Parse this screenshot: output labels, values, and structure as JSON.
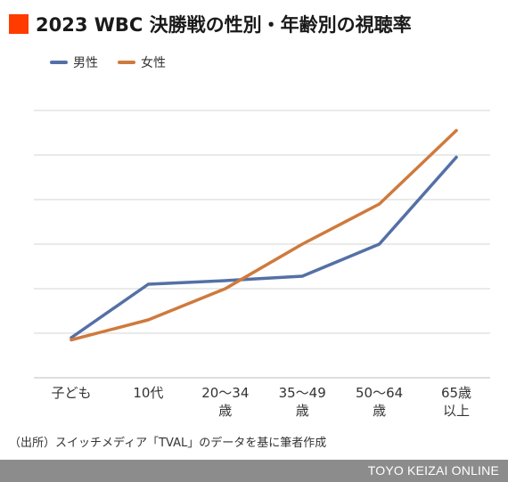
{
  "header": {
    "title": "2023 WBC 決勝戦の性別・年齢別の視聴率",
    "mark_color": "#ff3b00"
  },
  "source_note": "（出所）スイッチメディア「TVAL」のデータを基に筆者作成",
  "footer": {
    "brand": "TOYO KEIZAI ONLINE",
    "bar_color": "#8c8c8c"
  },
  "chart_data": {
    "type": "line",
    "title": "2023 WBC 決勝戦の性別・年齢別の視聴率",
    "categories": [
      "子ども",
      "10代",
      "20〜34歳",
      "35〜49歳",
      "50〜64歳",
      "65歳以上"
    ],
    "category_label_lines": [
      [
        "子ども"
      ],
      [
        "10代"
      ],
      [
        "20〜34",
        "歳"
      ],
      [
        "35〜49",
        "歳"
      ],
      [
        "50〜64",
        "歳"
      ],
      [
        "65歳",
        "以上"
      ]
    ],
    "series": [
      {
        "name": "男性",
        "color": "#5470a6",
        "values": [
          0.9,
          2.1,
          2.18,
          2.28,
          3.0,
          4.95
        ]
      },
      {
        "name": "女性",
        "color": "#cf7a3c",
        "values": [
          0.85,
          1.3,
          2.0,
          3.0,
          3.9,
          5.55
        ]
      }
    ],
    "ylim": [
      0,
      6
    ],
    "gridlines": [
      1,
      2,
      3,
      4,
      5,
      6
    ],
    "y_tick_labels_shown": false,
    "grid": true,
    "legend_position": "top-left"
  }
}
